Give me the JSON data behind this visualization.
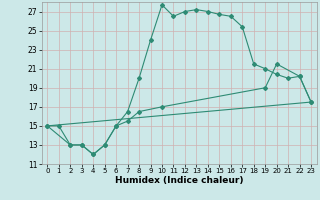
{
  "title": "",
  "xlabel": "Humidex (Indice chaleur)",
  "background_color": "#cce8e8",
  "grid_color": "#b8d8d8",
  "line_color": "#2e8b74",
  "xlim": [
    -0.5,
    23.5
  ],
  "ylim": [
    11,
    28
  ],
  "yticks": [
    11,
    13,
    15,
    17,
    19,
    21,
    23,
    25,
    27
  ],
  "xticks": [
    0,
    1,
    2,
    3,
    4,
    5,
    6,
    7,
    8,
    9,
    10,
    11,
    12,
    13,
    14,
    15,
    16,
    17,
    18,
    19,
    20,
    21,
    22,
    23
  ],
  "series1_x": [
    0,
    1,
    2,
    3,
    4,
    5,
    6,
    7,
    8,
    9,
    10,
    11,
    12,
    13,
    14,
    15,
    16,
    17,
    18,
    19,
    20,
    21,
    22,
    23
  ],
  "series1_y": [
    15,
    15,
    13,
    13,
    12,
    13,
    15,
    16.5,
    20,
    24,
    27.7,
    26.5,
    27,
    27.2,
    27,
    26.7,
    26.5,
    25.4,
    21.5,
    21,
    20.4,
    20,
    20.2,
    17.5
  ],
  "series2_x": [
    0,
    2,
    3,
    4,
    5,
    6,
    7,
    8,
    10,
    19,
    20,
    22,
    23
  ],
  "series2_y": [
    15,
    13,
    13,
    12,
    13,
    15,
    15.5,
    16.5,
    17,
    19,
    21.5,
    20.2,
    17.5
  ],
  "series3_x": [
    0,
    23
  ],
  "series3_y": [
    15,
    17.5
  ]
}
